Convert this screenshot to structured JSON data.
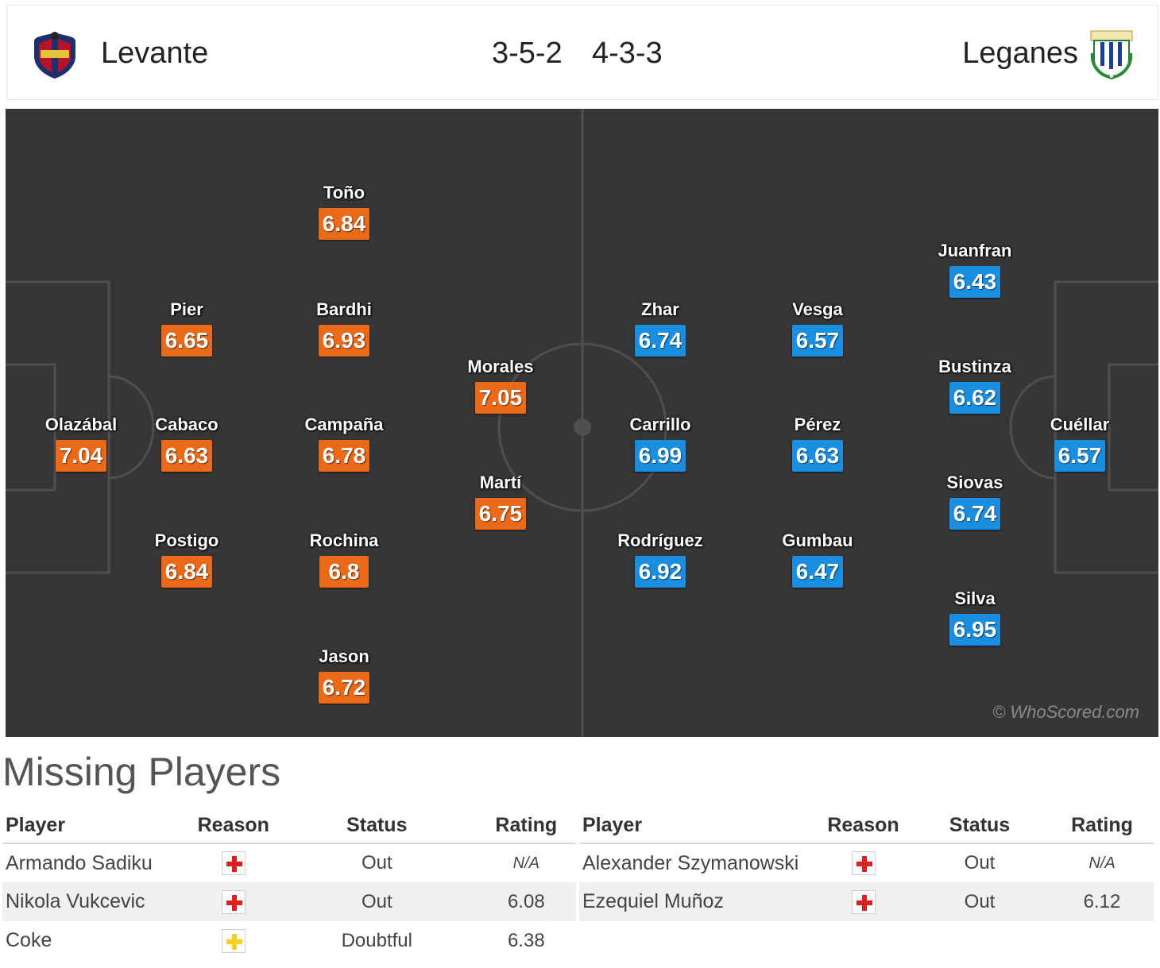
{
  "header": {
    "home_team": "Levante",
    "away_team": "Leganes",
    "home_formation": "3-5-2",
    "away_formation": "4-3-3"
  },
  "colors": {
    "home_rating": "#ea6a1a",
    "away_rating": "#1a8ee0",
    "pitch": "#363636",
    "injury": "#e02020",
    "doubtful": "#f5d020"
  },
  "pitch": {
    "home_players": [
      {
        "name": "Toño",
        "rating": "6.84"
      },
      {
        "name": "Pier",
        "rating": "6.65"
      },
      {
        "name": "Bardhi",
        "rating": "6.93"
      },
      {
        "name": "Morales",
        "rating": "7.05"
      },
      {
        "name": "Olazábal",
        "rating": "7.04"
      },
      {
        "name": "Cabaco",
        "rating": "6.63"
      },
      {
        "name": "Campaña",
        "rating": "6.78"
      },
      {
        "name": "Martí",
        "rating": "6.75"
      },
      {
        "name": "Postigo",
        "rating": "6.84"
      },
      {
        "name": "Rochina",
        "rating": "6.8"
      },
      {
        "name": "Jason",
        "rating": "6.72"
      }
    ],
    "away_players": [
      {
        "name": "Juanfran",
        "rating": "6.43"
      },
      {
        "name": "Zhar",
        "rating": "6.74"
      },
      {
        "name": "Vesga",
        "rating": "6.57"
      },
      {
        "name": "Bustinza",
        "rating": "6.62"
      },
      {
        "name": "Carrillo",
        "rating": "6.99"
      },
      {
        "name": "Pérez",
        "rating": "6.63"
      },
      {
        "name": "Cuéllar",
        "rating": "6.57"
      },
      {
        "name": "Siovas",
        "rating": "6.74"
      },
      {
        "name": "Rodríguez",
        "rating": "6.92"
      },
      {
        "name": "Gumbau",
        "rating": "6.47"
      },
      {
        "name": "Silva",
        "rating": "6.95"
      }
    ],
    "watermark": "© WhoScored.com"
  },
  "missing": {
    "title": "Missing Players",
    "columns": [
      "Player",
      "Reason",
      "Status",
      "Rating"
    ],
    "home": [
      {
        "player": "Armando Sadiku",
        "reason_icon": "injury-icon",
        "status": "Out",
        "rating": "N/A"
      },
      {
        "player": "Nikola Vukcevic",
        "reason_icon": "injury-icon",
        "status": "Out",
        "rating": "6.08"
      },
      {
        "player": "Coke",
        "reason_icon": "doubtful-icon",
        "status": "Doubtful",
        "rating": "6.38"
      }
    ],
    "away": [
      {
        "player": "Alexander Szymanowski",
        "reason_icon": "injury-icon",
        "status": "Out",
        "rating": "N/A"
      },
      {
        "player": "Ezequiel Muñoz",
        "reason_icon": "injury-icon",
        "status": "Out",
        "rating": "6.12"
      }
    ]
  }
}
